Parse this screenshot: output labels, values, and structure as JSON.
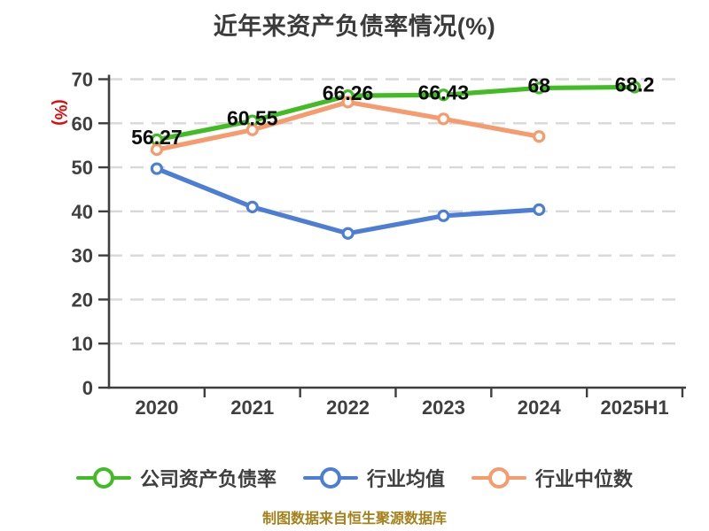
{
  "chart_data": {
    "type": "line",
    "title": "近年来资产负债率情况(%)",
    "ylabel": "(%)",
    "xlabel": "",
    "categories": [
      "2020",
      "2021",
      "2022",
      "2023",
      "2024",
      "2025H1"
    ],
    "ylim": [
      0,
      70
    ],
    "ytick_step": 10,
    "grid": true,
    "legend_position": "bottom",
    "series": [
      {
        "name": "公司资产负债率",
        "color": "#41bc25",
        "values": [
          56.27,
          60.55,
          66.26,
          66.43,
          68,
          68.2
        ],
        "labels": [
          "56.27",
          "60.55",
          "66.26",
          "66.43",
          "68",
          "68.2"
        ],
        "show_labels": true
      },
      {
        "name": "行业均值",
        "color": "#4d7ed6",
        "values": [
          49.7,
          41.0,
          35.0,
          39.0,
          40.4,
          null
        ],
        "labels": [],
        "show_labels": false
      },
      {
        "name": "行业中位数",
        "color": "#f59b6e",
        "values": [
          54.0,
          58.5,
          64.8,
          61.0,
          57.0,
          null
        ],
        "labels": [],
        "show_labels": false
      }
    ]
  },
  "footer": "制图数据来自恒生聚源数据库",
  "colors": {
    "title_text": "#3b3b3b",
    "axis": "#3f3f3f",
    "grid": "#d8d8d8",
    "data_label": "#0c0c0c",
    "y_name": "#df0b0b",
    "footer_text": "#a5801b",
    "background": "#ffffff"
  }
}
